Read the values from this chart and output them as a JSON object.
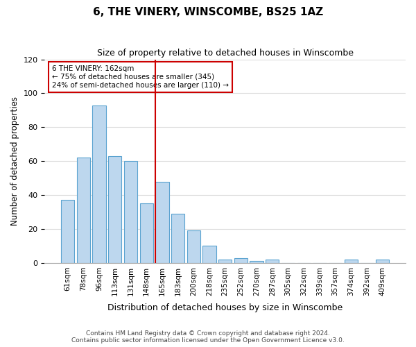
{
  "title": "6, THE VINERY, WINSCOMBE, BS25 1AZ",
  "subtitle": "Size of property relative to detached houses in Winscombe",
  "xlabel": "Distribution of detached houses by size in Winscombe",
  "ylabel": "Number of detached properties",
  "bar_labels": [
    "61sqm",
    "78sqm",
    "96sqm",
    "113sqm",
    "131sqm",
    "148sqm",
    "165sqm",
    "183sqm",
    "200sqm",
    "218sqm",
    "235sqm",
    "252sqm",
    "270sqm",
    "287sqm",
    "305sqm",
    "322sqm",
    "339sqm",
    "357sqm",
    "374sqm",
    "392sqm",
    "409sqm"
  ],
  "bar_values": [
    37,
    62,
    93,
    63,
    60,
    35,
    48,
    29,
    19,
    10,
    2,
    3,
    1,
    2,
    0,
    0,
    0,
    0,
    2,
    0,
    2
  ],
  "bar_color": "#bdd7ee",
  "bar_edge_color": "#5ba3d0",
  "vline_x": 5.575,
  "vline_color": "#cc0000",
  "annotation_text": "6 THE VINERY: 162sqm\n← 75% of detached houses are smaller (345)\n24% of semi-detached houses are larger (110) →",
  "annotation_box_color": "#ffffff",
  "annotation_box_edge": "#cc0000",
  "ylim": [
    0,
    120
  ],
  "yticks": [
    0,
    20,
    40,
    60,
    80,
    100,
    120
  ],
  "footer_line1": "Contains HM Land Registry data © Crown copyright and database right 2024.",
  "footer_line2": "Contains public sector information licensed under the Open Government Licence v3.0.",
  "bg_color": "#ffffff",
  "grid_color": "#dddddd"
}
